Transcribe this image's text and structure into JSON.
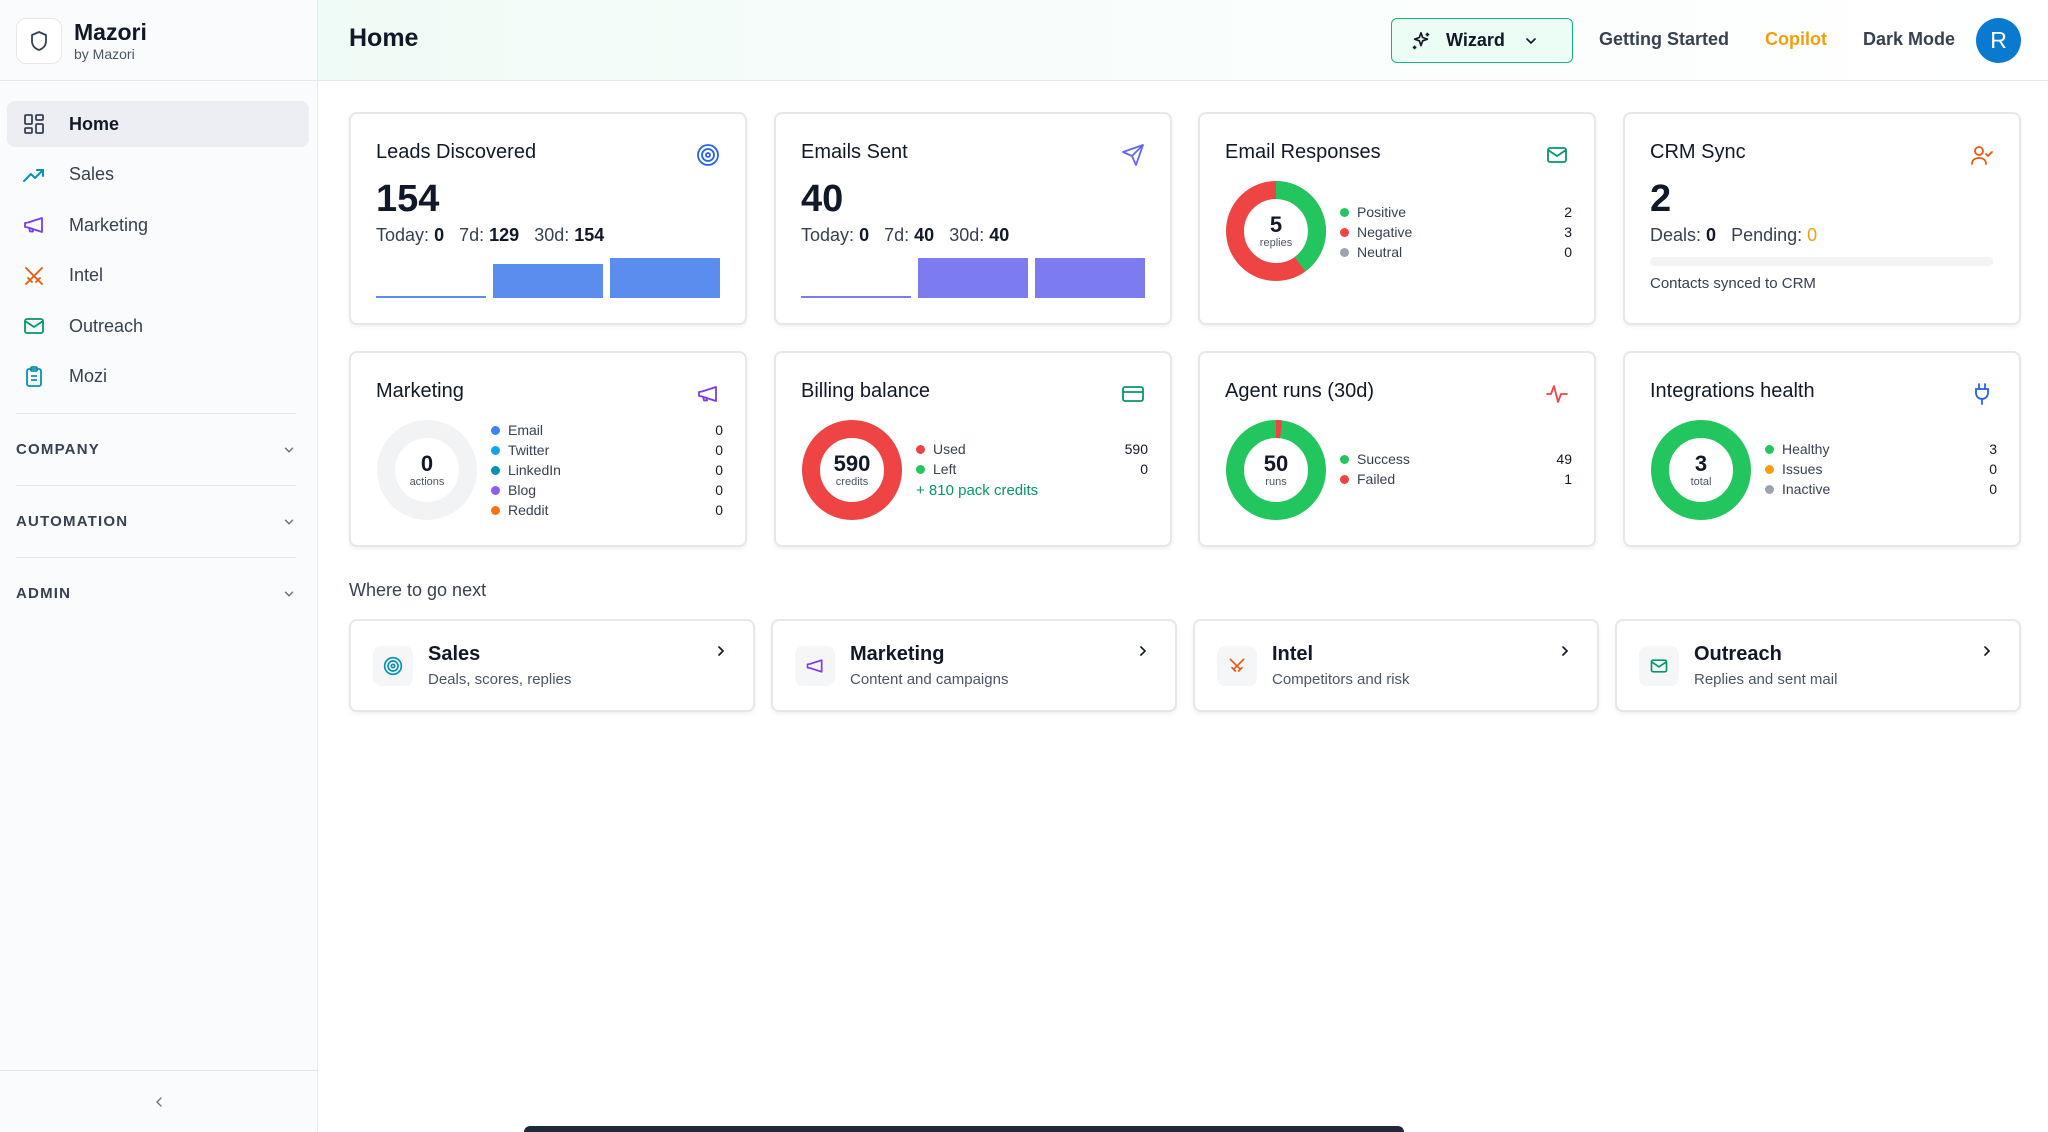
{
  "brand": {
    "name": "Mazori",
    "sub": "by Mazori"
  },
  "sidebar": {
    "items": [
      {
        "label": "Home",
        "icon": "grid-icon"
      },
      {
        "label": "Sales",
        "icon": "trending-up-icon"
      },
      {
        "label": "Marketing",
        "icon": "megaphone-icon"
      },
      {
        "label": "Intel",
        "icon": "swords-icon"
      },
      {
        "label": "Outreach",
        "icon": "mail-icon"
      },
      {
        "label": "Mozi",
        "icon": "clipboard-icon"
      }
    ],
    "sections": [
      "COMPANY",
      "AUTOMATION",
      "ADMIN"
    ]
  },
  "header": {
    "title": "Home",
    "wizard": "Wizard",
    "getting_started": "Getting Started",
    "copilot": "Copilot",
    "dark_mode": "Dark Mode",
    "avatar": "R"
  },
  "cards": {
    "leads": {
      "title": "Leads Discovered",
      "value": "154",
      "today_label": "Today:",
      "today": "0",
      "d7_label": "7d:",
      "d7": "129",
      "d30_label": "30d:",
      "d30": "154",
      "bars": [
        0,
        129,
        154
      ]
    },
    "emails": {
      "title": "Emails Sent",
      "value": "40",
      "today_label": "Today:",
      "today": "0",
      "d7_label": "7d:",
      "d7": "40",
      "d30_label": "30d:",
      "d30": "40",
      "bars": [
        0,
        40,
        40
      ]
    },
    "responses": {
      "title": "Email Responses",
      "center": "5",
      "unit": "replies",
      "legend": [
        {
          "name": "Positive",
          "value": "2",
          "color": "#22c55e"
        },
        {
          "name": "Negative",
          "value": "3",
          "color": "#ef4444"
        },
        {
          "name": "Neutral",
          "value": "0",
          "color": "#9ca3af"
        }
      ]
    },
    "crm": {
      "title": "CRM Sync",
      "value": "2",
      "deals_label": "Deals:",
      "deals": "0",
      "pending_label": "Pending:",
      "pending": "0",
      "note": "Contacts synced to CRM"
    },
    "marketing": {
      "title": "Marketing",
      "center": "0",
      "unit": "actions",
      "legend": [
        {
          "name": "Email",
          "value": "0",
          "color": "#3b82f6"
        },
        {
          "name": "Twitter",
          "value": "0",
          "color": "#0ea5e9"
        },
        {
          "name": "LinkedIn",
          "value": "0",
          "color": "#0891b2"
        },
        {
          "name": "Blog",
          "value": "0",
          "color": "#8b5cf6"
        },
        {
          "name": "Reddit",
          "value": "0",
          "color": "#f97316"
        }
      ]
    },
    "billing": {
      "title": "Billing balance",
      "center": "590",
      "unit": "credits",
      "legend": [
        {
          "name": "Used",
          "value": "590",
          "color": "#ef4444"
        },
        {
          "name": "Left",
          "value": "0",
          "color": "#22c55e"
        }
      ],
      "pack": "+ 810 pack credits"
    },
    "agent": {
      "title": "Agent runs (30d)",
      "center": "50",
      "unit": "runs",
      "legend": [
        {
          "name": "Success",
          "value": "49",
          "color": "#22c55e"
        },
        {
          "name": "Failed",
          "value": "1",
          "color": "#ef4444"
        }
      ]
    },
    "integrations": {
      "title": "Integrations health",
      "center": "3",
      "unit": "total",
      "legend": [
        {
          "name": "Healthy",
          "value": "3",
          "color": "#22c55e"
        },
        {
          "name": "Issues",
          "value": "0",
          "color": "#f59e0b"
        },
        {
          "name": "Inactive",
          "value": "0",
          "color": "#9ca3af"
        }
      ]
    }
  },
  "next": {
    "heading": "Where to go next",
    "items": [
      {
        "title": "Sales",
        "sub": "Deals, scores, replies"
      },
      {
        "title": "Marketing",
        "sub": "Content and campaigns"
      },
      {
        "title": "Intel",
        "sub": "Competitors and risk"
      },
      {
        "title": "Outreach",
        "sub": "Replies and sent mail"
      }
    ]
  },
  "colors": {
    "accent": "#10b981",
    "blue_bar": "#5b8def",
    "purple_bar": "#7c7cf0",
    "avatar": "#0a7ad1",
    "copilot": "#f59e0b"
  }
}
